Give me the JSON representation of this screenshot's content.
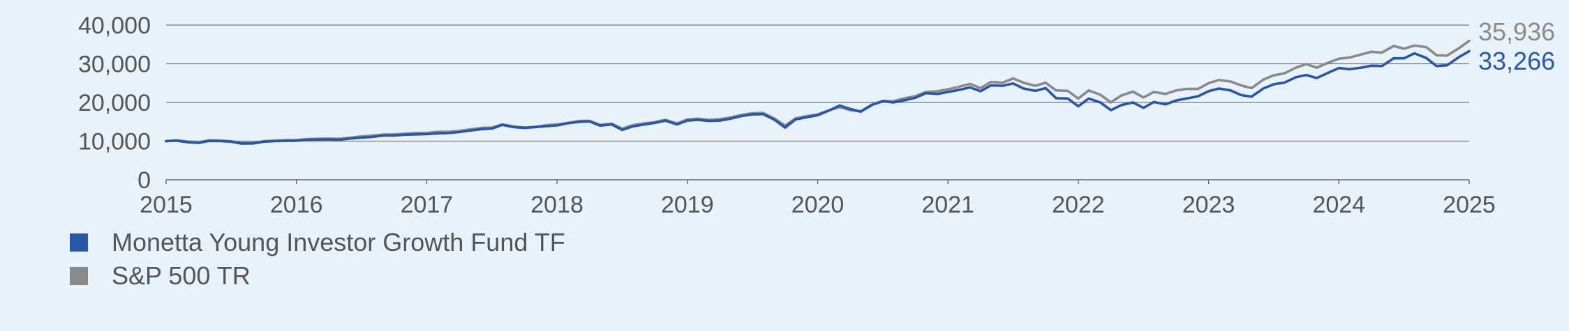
{
  "chart_data": {
    "type": "line",
    "title": "",
    "xlabel": "",
    "ylabel": "",
    "ylim": [
      0,
      40000
    ],
    "xlim": [
      2015,
      2025
    ],
    "grid": true,
    "y_ticks": [
      {
        "value": 0,
        "label": "0"
      },
      {
        "value": 10000,
        "label": "10,000"
      },
      {
        "value": 20000,
        "label": "20,000"
      },
      {
        "value": 30000,
        "label": "30,000"
      },
      {
        "value": 40000,
        "label": "40,000"
      }
    ],
    "x_ticks": [
      {
        "value": 2015,
        "label": "2015"
      },
      {
        "value": 2016,
        "label": "2016"
      },
      {
        "value": 2017,
        "label": "2017"
      },
      {
        "value": 2018,
        "label": "2018"
      },
      {
        "value": 2019,
        "label": "2019"
      },
      {
        "value": 2020,
        "label": "2020"
      },
      {
        "value": 2021,
        "label": "2021"
      },
      {
        "value": 2022,
        "label": "2022"
      },
      {
        "value": 2023,
        "label": "2023"
      },
      {
        "value": 2024,
        "label": "2024"
      },
      {
        "value": 2025,
        "label": "2025"
      }
    ],
    "legend_position": "bottom-left",
    "series": [
      {
        "name": "Monetta Young Investor Growth Fund TF",
        "color": "#2b56a3",
        "end_label": "33,266",
        "points": [
          [
            2015.0,
            10000
          ],
          [
            2015.08,
            10100
          ],
          [
            2015.17,
            9700
          ],
          [
            2015.25,
            9550
          ],
          [
            2015.33,
            10050
          ],
          [
            2015.42,
            10000
          ],
          [
            2015.5,
            9850
          ],
          [
            2015.58,
            9350
          ],
          [
            2015.67,
            9400
          ],
          [
            2015.75,
            9850
          ],
          [
            2015.83,
            10000
          ],
          [
            2015.92,
            10050
          ],
          [
            2016.0,
            10100
          ],
          [
            2016.08,
            10350
          ],
          [
            2016.17,
            10400
          ],
          [
            2016.25,
            10450
          ],
          [
            2016.33,
            10350
          ],
          [
            2016.42,
            10700
          ],
          [
            2016.5,
            10900
          ],
          [
            2016.58,
            11100
          ],
          [
            2016.67,
            11450
          ],
          [
            2016.75,
            11450
          ],
          [
            2016.83,
            11650
          ],
          [
            2016.92,
            11750
          ],
          [
            2017.0,
            11800
          ],
          [
            2017.08,
            12000
          ],
          [
            2017.17,
            12100
          ],
          [
            2017.25,
            12350
          ],
          [
            2017.33,
            12700
          ],
          [
            2017.42,
            13100
          ],
          [
            2017.5,
            13250
          ],
          [
            2017.58,
            14200
          ],
          [
            2017.67,
            13600
          ],
          [
            2017.75,
            13400
          ],
          [
            2017.83,
            13600
          ],
          [
            2017.92,
            13900
          ],
          [
            2018.0,
            14050
          ],
          [
            2018.08,
            14600
          ],
          [
            2018.17,
            15000
          ],
          [
            2018.25,
            15100
          ],
          [
            2018.33,
            14000
          ],
          [
            2018.42,
            14300
          ],
          [
            2018.5,
            12900
          ],
          [
            2018.58,
            13800
          ],
          [
            2018.67,
            14300
          ],
          [
            2018.75,
            14700
          ],
          [
            2018.83,
            15300
          ],
          [
            2018.92,
            14300
          ],
          [
            2019.0,
            15300
          ],
          [
            2019.08,
            15500
          ],
          [
            2019.17,
            15200
          ],
          [
            2019.25,
            15300
          ],
          [
            2019.33,
            15800
          ],
          [
            2019.42,
            16500
          ],
          [
            2019.5,
            16900
          ],
          [
            2019.58,
            17000
          ],
          [
            2019.67,
            15500
          ],
          [
            2019.75,
            13500
          ],
          [
            2019.83,
            15600
          ],
          [
            2019.92,
            16200
          ],
          [
            2020.0,
            16700
          ],
          [
            2020.08,
            17800
          ],
          [
            2020.17,
            19200
          ],
          [
            2020.25,
            18300
          ],
          [
            2020.33,
            17600
          ],
          [
            2020.42,
            19400
          ],
          [
            2020.5,
            20300
          ],
          [
            2020.58,
            20000
          ],
          [
            2020.67,
            20600
          ],
          [
            2020.75,
            21200
          ],
          [
            2020.83,
            22400
          ],
          [
            2020.92,
            22200
          ],
          [
            2021.0,
            22700
          ],
          [
            2021.08,
            23200
          ],
          [
            2021.17,
            23900
          ],
          [
            2021.25,
            22900
          ],
          [
            2021.33,
            24400
          ],
          [
            2021.42,
            24300
          ],
          [
            2021.5,
            24900
          ],
          [
            2021.58,
            23600
          ],
          [
            2021.67,
            23000
          ],
          [
            2021.75,
            23700
          ],
          [
            2021.83,
            21100
          ],
          [
            2021.92,
            21000
          ],
          [
            2022.0,
            19000
          ],
          [
            2022.08,
            21000
          ],
          [
            2022.17,
            20000
          ],
          [
            2022.25,
            18000
          ],
          [
            2022.33,
            19300
          ],
          [
            2022.42,
            20000
          ],
          [
            2022.5,
            18600
          ],
          [
            2022.58,
            20100
          ],
          [
            2022.67,
            19500
          ],
          [
            2022.75,
            20500
          ],
          [
            2022.83,
            21000
          ],
          [
            2022.92,
            21600
          ],
          [
            2023.0,
            22900
          ],
          [
            2023.08,
            23600
          ],
          [
            2023.17,
            23100
          ],
          [
            2023.25,
            21900
          ],
          [
            2023.33,
            21500
          ],
          [
            2023.42,
            23600
          ],
          [
            2023.5,
            24700
          ],
          [
            2023.58,
            25100
          ],
          [
            2023.67,
            26500
          ],
          [
            2023.75,
            27100
          ],
          [
            2023.83,
            26300
          ],
          [
            2023.92,
            27700
          ],
          [
            2024.0,
            28900
          ],
          [
            2024.08,
            28600
          ],
          [
            2024.17,
            29000
          ],
          [
            2024.25,
            29500
          ],
          [
            2024.33,
            29400
          ],
          [
            2024.42,
            31400
          ],
          [
            2024.5,
            31400
          ],
          [
            2024.58,
            32700
          ],
          [
            2024.67,
            31500
          ],
          [
            2024.75,
            29400
          ],
          [
            2024.83,
            29600
          ],
          [
            2024.92,
            31700
          ],
          [
            2025.0,
            33266
          ]
        ]
      },
      {
        "name": "S&P 500 TR",
        "color": "#8a8a8a",
        "end_label": "35,936",
        "points": [
          [
            2015.0,
            10000
          ],
          [
            2015.08,
            10200
          ],
          [
            2015.17,
            9900
          ],
          [
            2015.25,
            9700
          ],
          [
            2015.33,
            10200
          ],
          [
            2015.42,
            10150
          ],
          [
            2015.5,
            9950
          ],
          [
            2015.58,
            9500
          ],
          [
            2015.67,
            9500
          ],
          [
            2015.75,
            10000
          ],
          [
            2015.83,
            10100
          ],
          [
            2015.92,
            10250
          ],
          [
            2016.0,
            10250
          ],
          [
            2016.08,
            10500
          ],
          [
            2016.17,
            10600
          ],
          [
            2016.25,
            10650
          ],
          [
            2016.33,
            10600
          ],
          [
            2016.42,
            10900
          ],
          [
            2016.5,
            11200
          ],
          [
            2016.58,
            11400
          ],
          [
            2016.67,
            11700
          ],
          [
            2016.75,
            11750
          ],
          [
            2016.83,
            11900
          ],
          [
            2016.92,
            12100
          ],
          [
            2017.0,
            12100
          ],
          [
            2017.08,
            12400
          ],
          [
            2017.17,
            12400
          ],
          [
            2017.25,
            12650
          ],
          [
            2017.33,
            13000
          ],
          [
            2017.42,
            13400
          ],
          [
            2017.5,
            13500
          ],
          [
            2017.58,
            14300
          ],
          [
            2017.67,
            13800
          ],
          [
            2017.75,
            13500
          ],
          [
            2017.83,
            13700
          ],
          [
            2017.92,
            14100
          ],
          [
            2018.0,
            14300
          ],
          [
            2018.08,
            14700
          ],
          [
            2018.17,
            15200
          ],
          [
            2018.25,
            15200
          ],
          [
            2018.33,
            14200
          ],
          [
            2018.42,
            14500
          ],
          [
            2018.5,
            13200
          ],
          [
            2018.58,
            14100
          ],
          [
            2018.67,
            14600
          ],
          [
            2018.75,
            14900
          ],
          [
            2018.83,
            15500
          ],
          [
            2018.92,
            14600
          ],
          [
            2019.0,
            15600
          ],
          [
            2019.08,
            15800
          ],
          [
            2019.17,
            15500
          ],
          [
            2019.25,
            15700
          ],
          [
            2019.33,
            16100
          ],
          [
            2019.42,
            16800
          ],
          [
            2019.5,
            17200
          ],
          [
            2019.58,
            17300
          ],
          [
            2019.67,
            15800
          ],
          [
            2019.75,
            14000
          ],
          [
            2019.83,
            15900
          ],
          [
            2019.92,
            16500
          ],
          [
            2020.0,
            16900
          ],
          [
            2020.08,
            17900
          ],
          [
            2020.17,
            18800
          ],
          [
            2020.25,
            18000
          ],
          [
            2020.33,
            17700
          ],
          [
            2020.42,
            19500
          ],
          [
            2020.5,
            20400
          ],
          [
            2020.58,
            20300
          ],
          [
            2020.67,
            21100
          ],
          [
            2020.75,
            21600
          ],
          [
            2020.83,
            22700
          ],
          [
            2020.92,
            22900
          ],
          [
            2021.0,
            23400
          ],
          [
            2021.08,
            24000
          ],
          [
            2021.17,
            24800
          ],
          [
            2021.25,
            23700
          ],
          [
            2021.33,
            25300
          ],
          [
            2021.42,
            25100
          ],
          [
            2021.5,
            26200
          ],
          [
            2021.58,
            25100
          ],
          [
            2021.67,
            24300
          ],
          [
            2021.75,
            25100
          ],
          [
            2021.83,
            23100
          ],
          [
            2021.92,
            23000
          ],
          [
            2022.0,
            21000
          ],
          [
            2022.08,
            23100
          ],
          [
            2022.17,
            22000
          ],
          [
            2022.25,
            20000
          ],
          [
            2022.33,
            21800
          ],
          [
            2022.42,
            22800
          ],
          [
            2022.5,
            21300
          ],
          [
            2022.58,
            22700
          ],
          [
            2022.67,
            22200
          ],
          [
            2022.75,
            23100
          ],
          [
            2022.83,
            23500
          ],
          [
            2022.92,
            23500
          ],
          [
            2023.0,
            25000
          ],
          [
            2023.08,
            25800
          ],
          [
            2023.17,
            25400
          ],
          [
            2023.25,
            24400
          ],
          [
            2023.33,
            23700
          ],
          [
            2023.42,
            25900
          ],
          [
            2023.5,
            27000
          ],
          [
            2023.58,
            27500
          ],
          [
            2023.67,
            29000
          ],
          [
            2023.75,
            29900
          ],
          [
            2023.83,
            29000
          ],
          [
            2023.92,
            30300
          ],
          [
            2024.0,
            31300
          ],
          [
            2024.08,
            31600
          ],
          [
            2024.17,
            32400
          ],
          [
            2024.25,
            33100
          ],
          [
            2024.33,
            32900
          ],
          [
            2024.42,
            34600
          ],
          [
            2024.5,
            33900
          ],
          [
            2024.58,
            34700
          ],
          [
            2024.67,
            34300
          ],
          [
            2024.75,
            32200
          ],
          [
            2024.83,
            32100
          ],
          [
            2024.92,
            34000
          ],
          [
            2025.0,
            35936
          ]
        ]
      }
    ]
  }
}
